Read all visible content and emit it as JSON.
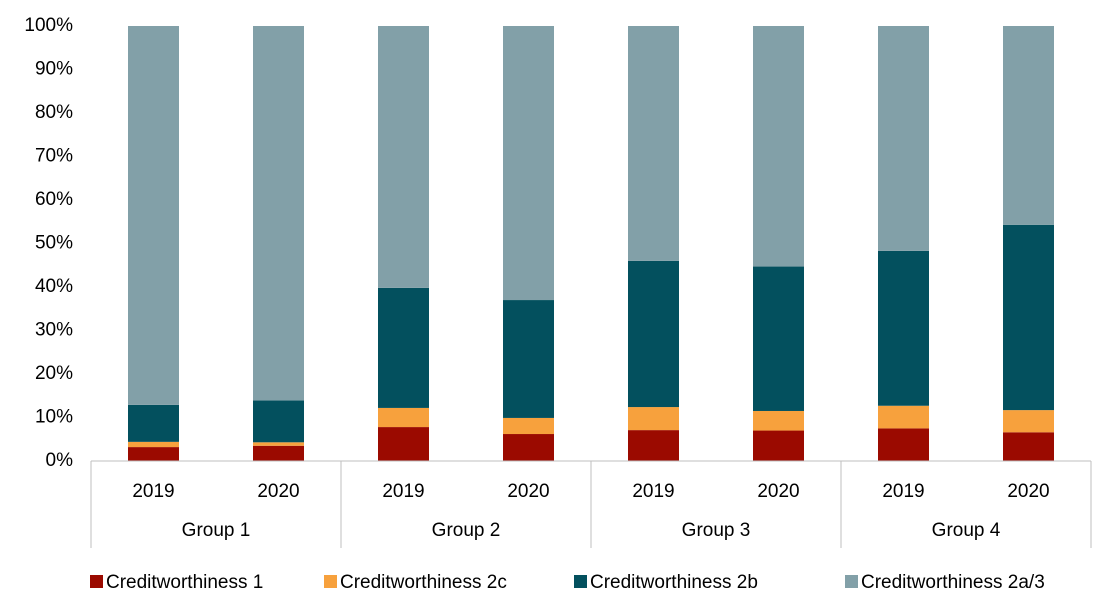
{
  "chart_data": {
    "type": "stacked_bar",
    "categories": [
      "2019",
      "2020",
      "2019",
      "2020",
      "2019",
      "2020",
      "2019",
      "2020"
    ],
    "groups": [
      "Group 1",
      "Group 2",
      "Group 3",
      "Group 4"
    ],
    "series": [
      {
        "name": "Creditworthiness 1",
        "color": "#9b0a00",
        "values": [
          3.2,
          3.5,
          7.8,
          6.2,
          7.1,
          7.0,
          7.5,
          6.6
        ]
      },
      {
        "name": "Creditworthiness 2c",
        "color": "#f7a13d",
        "values": [
          1.2,
          0.8,
          4.4,
          3.7,
          5.3,
          4.5,
          5.2,
          5.1
        ]
      },
      {
        "name": "Creditworthiness 2b",
        "color": "#03505e",
        "values": [
          8.5,
          9.6,
          27.6,
          27.1,
          33.6,
          33.2,
          35.6,
          42.6
        ]
      },
      {
        "name": "Creditworthiness 2a/3",
        "color": "#82a0a8",
        "values": [
          87.1,
          86.1,
          60.2,
          63.0,
          54.0,
          55.3,
          51.7,
          45.7
        ]
      }
    ],
    "ylim": [
      0,
      100
    ],
    "yticks": [
      {
        "value": 0,
        "label": "0%"
      },
      {
        "value": 10,
        "label": "10%"
      },
      {
        "value": 20,
        "label": "20%"
      },
      {
        "value": 30,
        "label": "30%"
      },
      {
        "value": 40,
        "label": "40%"
      },
      {
        "value": 50,
        "label": "50%"
      },
      {
        "value": 60,
        "label": "60%"
      },
      {
        "value": 70,
        "label": "70%"
      },
      {
        "value": 80,
        "label": "80%"
      },
      {
        "value": 90,
        "label": "90%"
      },
      {
        "value": 100,
        "label": "100%"
      }
    ],
    "legend": "bottom"
  }
}
